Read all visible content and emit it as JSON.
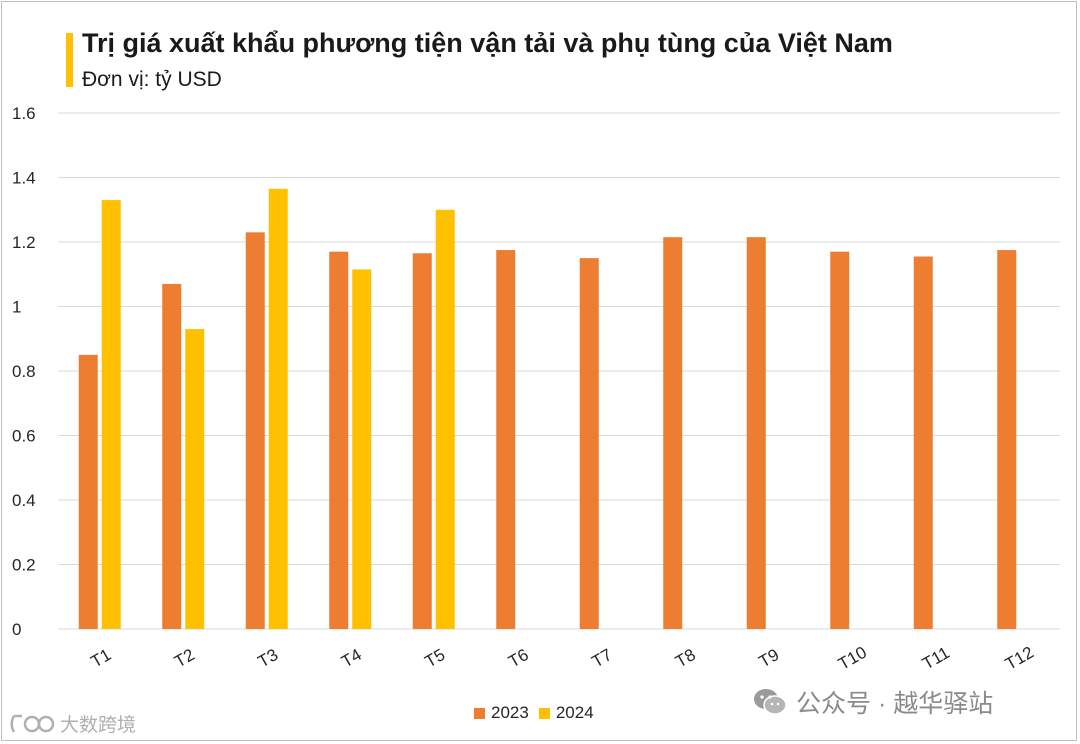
{
  "chart_data": {
    "type": "bar",
    "title": "Trị giá xuất khẩu phương tiện vận tải và phụ tùng của Việt Nam",
    "subtitle": "Đơn vị: tỷ USD",
    "categories": [
      "T1",
      "T2",
      "T3",
      "T4",
      "T5",
      "T6",
      "T7",
      "T8",
      "T9",
      "T10",
      "T11",
      "T12"
    ],
    "series": [
      {
        "name": "2023",
        "color": "#ed7d31",
        "values": [
          0.85,
          1.07,
          1.23,
          1.17,
          1.165,
          1.175,
          1.15,
          1.215,
          1.215,
          1.17,
          1.155,
          1.175
        ]
      },
      {
        "name": "2024",
        "color": "#ffc000",
        "values": [
          1.33,
          0.93,
          1.365,
          1.115,
          1.3,
          null,
          null,
          null,
          null,
          null,
          null,
          null
        ]
      }
    ],
    "ylim": [
      0,
      1.6
    ],
    "yticks": [
      "0",
      "0.2",
      "0.4",
      "0.6",
      "0.8",
      "1",
      "1.2",
      "1.4",
      "1.6"
    ],
    "grid": true,
    "legend_position": "bottom"
  },
  "watermarks": {
    "right_text": "公众号 · 越华驿站",
    "right_icon": "wechat-icon",
    "left_text": "大数跨境",
    "left_icon": "brand-logo-icon"
  },
  "colors": {
    "accent": "#ffc000",
    "grid": "#d9d9d9"
  }
}
